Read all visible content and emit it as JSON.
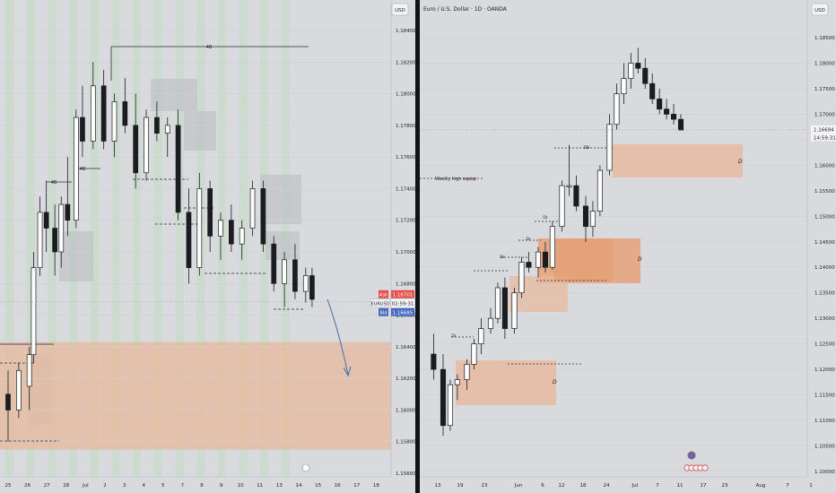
{
  "left_panel": {
    "currency": "USD",
    "y_ticks": [
      "1.18400",
      "1.18200",
      "1.18000",
      "1.17800",
      "1.17600",
      "1.17400",
      "1.17200",
      "1.17000",
      "1.16800",
      "1.16600",
      "1.16400",
      "1.16200",
      "1.16000",
      "1.15800",
      "1.15600"
    ],
    "x_ticks": [
      "25",
      "26",
      "27",
      "28",
      "Jul",
      "2",
      "3",
      "4",
      "5",
      "7",
      "8",
      "9",
      "10",
      "11",
      "13",
      "14",
      "15",
      "16",
      "17",
      "18"
    ],
    "ask": {
      "label": "Ask",
      "value": "1.16701"
    },
    "symbol": {
      "label": "EURUSD",
      "countdown": "02:59:31"
    },
    "bid": {
      "label": "Bid",
      "value": "1.16685"
    },
    "level_marks": [
      "4B",
      "4B",
      "4B"
    ],
    "accent": {
      "ask": "#e84e4e",
      "bid": "#4769c2",
      "zone": "#e8b89b",
      "arrow": "#4a78a8"
    }
  },
  "right_panel": {
    "currency": "USD",
    "title": "Euro / U.S. Dollar · 1D · OANDA",
    "y_ticks": [
      "1.18500",
      "1.18000",
      "1.17500",
      "1.17000",
      "1.16500",
      "1.16000",
      "1.15500",
      "1.15000",
      "1.14500",
      "1.14000",
      "1.13500",
      "1.13000",
      "1.12500",
      "1.12000",
      "1.11500",
      "1.11000",
      "1.10500",
      "1.10000"
    ],
    "x_ticks": [
      "13",
      "19",
      "23",
      "Jun",
      "6",
      "12",
      "18",
      "24",
      "Jul",
      "7",
      "11",
      "17",
      "23",
      "Aug",
      "7",
      "1"
    ],
    "price": {
      "value": "1.16694",
      "countdown": "14:59:31"
    },
    "annotations": {
      "sweep": "Weekly high sweep",
      "zone_label": "D",
      "level_marks": [
        "DB",
        "Dr",
        "Dr",
        "Dr",
        "Dr"
      ]
    }
  },
  "chart_data": [
    {
      "type": "candlestick",
      "title": "",
      "xlabel": "",
      "ylabel": "",
      "x": [
        "25",
        "26",
        "27",
        "28",
        "Jul",
        "2",
        "3",
        "4",
        "5",
        "7",
        "8",
        "9",
        "10",
        "11",
        "13",
        "14",
        "15",
        "16",
        "17",
        "18"
      ],
      "ylim": [
        1.155,
        1.1855
      ],
      "candles": [
        {
          "i": 0,
          "o": 1.161,
          "h": 1.1625,
          "l": 1.158,
          "c": 1.16
        },
        {
          "i": 0.5,
          "o": 1.16,
          "h": 1.163,
          "l": 1.1595,
          "c": 1.1625
        },
        {
          "i": 1,
          "o": 1.1615,
          "h": 1.164,
          "l": 1.16,
          "c": 1.1635
        },
        {
          "i": 1.2,
          "o": 1.1635,
          "h": 1.17,
          "l": 1.163,
          "c": 1.169
        },
        {
          "i": 1.5,
          "o": 1.169,
          "h": 1.1735,
          "l": 1.1685,
          "c": 1.1725
        },
        {
          "i": 1.8,
          "o": 1.1725,
          "h": 1.1745,
          "l": 1.17,
          "c": 1.1715
        },
        {
          "i": 2.2,
          "o": 1.1715,
          "h": 1.173,
          "l": 1.1685,
          "c": 1.17
        },
        {
          "i": 2.5,
          "o": 1.17,
          "h": 1.1735,
          "l": 1.169,
          "c": 1.173
        },
        {
          "i": 2.8,
          "o": 1.173,
          "h": 1.176,
          "l": 1.171,
          "c": 1.172
        },
        {
          "i": 3.2,
          "o": 1.172,
          "h": 1.179,
          "l": 1.1715,
          "c": 1.1785
        },
        {
          "i": 3.5,
          "o": 1.1785,
          "h": 1.1805,
          "l": 1.176,
          "c": 1.177
        },
        {
          "i": 4,
          "o": 1.177,
          "h": 1.182,
          "l": 1.1765,
          "c": 1.1805
        },
        {
          "i": 4.5,
          "o": 1.1805,
          "h": 1.1815,
          "l": 1.1765,
          "c": 1.177
        },
        {
          "i": 5,
          "o": 1.177,
          "h": 1.18,
          "l": 1.176,
          "c": 1.1795
        },
        {
          "i": 5.5,
          "o": 1.1795,
          "h": 1.181,
          "l": 1.1775,
          "c": 1.178
        },
        {
          "i": 6,
          "o": 1.178,
          "h": 1.18,
          "l": 1.174,
          "c": 1.175
        },
        {
          "i": 6.5,
          "o": 1.175,
          "h": 1.179,
          "l": 1.1745,
          "c": 1.1785
        },
        {
          "i": 7,
          "o": 1.1785,
          "h": 1.1795,
          "l": 1.177,
          "c": 1.1775
        },
        {
          "i": 7.5,
          "o": 1.1775,
          "h": 1.1785,
          "l": 1.176,
          "c": 1.178
        },
        {
          "i": 8,
          "o": 1.178,
          "h": 1.179,
          "l": 1.172,
          "c": 1.1725
        },
        {
          "i": 8.5,
          "o": 1.1725,
          "h": 1.174,
          "l": 1.168,
          "c": 1.169
        },
        {
          "i": 9,
          "o": 1.169,
          "h": 1.175,
          "l": 1.1685,
          "c": 1.174
        },
        {
          "i": 9.5,
          "o": 1.174,
          "h": 1.1745,
          "l": 1.17,
          "c": 1.171
        },
        {
          "i": 10,
          "o": 1.171,
          "h": 1.1725,
          "l": 1.1695,
          "c": 1.172
        },
        {
          "i": 10.5,
          "o": 1.172,
          "h": 1.173,
          "l": 1.17,
          "c": 1.1705
        },
        {
          "i": 11,
          "o": 1.1705,
          "h": 1.172,
          "l": 1.1695,
          "c": 1.1715
        },
        {
          "i": 11.5,
          "o": 1.1715,
          "h": 1.1745,
          "l": 1.171,
          "c": 1.174
        },
        {
          "i": 12,
          "o": 1.174,
          "h": 1.1745,
          "l": 1.17,
          "c": 1.1705
        },
        {
          "i": 12.5,
          "o": 1.1705,
          "h": 1.171,
          "l": 1.1675,
          "c": 1.168
        },
        {
          "i": 13,
          "o": 1.168,
          "h": 1.17,
          "l": 1.1665,
          "c": 1.1695
        },
        {
          "i": 13.5,
          "o": 1.1695,
          "h": 1.1705,
          "l": 1.167,
          "c": 1.1675
        },
        {
          "i": 14,
          "o": 1.1675,
          "h": 1.169,
          "l": 1.1668,
          "c": 1.1685
        },
        {
          "i": 14.3,
          "o": 1.1685,
          "h": 1.169,
          "l": 1.1665,
          "c": 1.167
        }
      ],
      "zones": [
        {
          "y1": 1.1575,
          "y2": 1.1643,
          "color": "#e8b89b"
        }
      ]
    },
    {
      "type": "candlestick",
      "title": "Euro / U.S. Dollar · 1D · OANDA",
      "xlabel": "",
      "ylabel": "",
      "x": [
        "13",
        "19",
        "23",
        "Jun",
        "6",
        "12",
        "18",
        "24",
        "Jul",
        "7",
        "11",
        "17",
        "23",
        "Aug",
        "7",
        "1"
      ],
      "ylim": [
        1.098,
        1.188
      ],
      "candles": [
        {
          "i": -0.4,
          "o": 1.123,
          "h": 1.127,
          "l": 1.118,
          "c": 1.12
        },
        {
          "i": 0,
          "o": 1.12,
          "h": 1.123,
          "l": 1.107,
          "c": 1.109
        },
        {
          "i": 0.3,
          "o": 1.109,
          "h": 1.118,
          "l": 1.108,
          "c": 1.117
        },
        {
          "i": 0.6,
          "o": 1.117,
          "h": 1.119,
          "l": 1.114,
          "c": 1.118
        },
        {
          "i": 1,
          "o": 1.118,
          "h": 1.122,
          "l": 1.116,
          "c": 1.121
        },
        {
          "i": 1.3,
          "o": 1.121,
          "h": 1.126,
          "l": 1.12,
          "c": 1.125
        },
        {
          "i": 1.6,
          "o": 1.125,
          "h": 1.13,
          "l": 1.123,
          "c": 1.128
        },
        {
          "i": 2,
          "o": 1.128,
          "h": 1.132,
          "l": 1.127,
          "c": 1.13
        },
        {
          "i": 2.3,
          "o": 1.13,
          "h": 1.137,
          "l": 1.129,
          "c": 1.136
        },
        {
          "i": 2.6,
          "o": 1.136,
          "h": 1.138,
          "l": 1.126,
          "c": 1.128
        },
        {
          "i": 3,
          "o": 1.128,
          "h": 1.136,
          "l": 1.127,
          "c": 1.135
        },
        {
          "i": 3.3,
          "o": 1.135,
          "h": 1.142,
          "l": 1.134,
          "c": 1.141
        },
        {
          "i": 3.6,
          "o": 1.141,
          "h": 1.143,
          "l": 1.139,
          "c": 1.14
        },
        {
          "i": 4,
          "o": 1.14,
          "h": 1.144,
          "l": 1.138,
          "c": 1.143
        },
        {
          "i": 4.3,
          "o": 1.143,
          "h": 1.145,
          "l": 1.139,
          "c": 1.14
        },
        {
          "i": 4.6,
          "o": 1.14,
          "h": 1.149,
          "l": 1.1395,
          "c": 1.148
        },
        {
          "i": 5,
          "o": 1.148,
          "h": 1.157,
          "l": 1.147,
          "c": 1.156
        },
        {
          "i": 5.3,
          "o": 1.156,
          "h": 1.164,
          "l": 1.154,
          "c": 1.156
        },
        {
          "i": 5.6,
          "o": 1.156,
          "h": 1.158,
          "l": 1.151,
          "c": 1.152
        },
        {
          "i": 6,
          "o": 1.152,
          "h": 1.154,
          "l": 1.145,
          "c": 1.148
        },
        {
          "i": 6.3,
          "o": 1.148,
          "h": 1.153,
          "l": 1.146,
          "c": 1.151
        },
        {
          "i": 6.6,
          "o": 1.151,
          "h": 1.16,
          "l": 1.15,
          "c": 1.159
        },
        {
          "i": 7,
          "o": 1.159,
          "h": 1.17,
          "l": 1.158,
          "c": 1.168
        },
        {
          "i": 7.3,
          "o": 1.168,
          "h": 1.176,
          "l": 1.167,
          "c": 1.174
        },
        {
          "i": 7.6,
          "o": 1.174,
          "h": 1.18,
          "l": 1.172,
          "c": 1.177
        },
        {
          "i": 7.9,
          "o": 1.177,
          "h": 1.182,
          "l": 1.175,
          "c": 1.18
        },
        {
          "i": 8.2,
          "o": 1.18,
          "h": 1.183,
          "l": 1.178,
          "c": 1.179
        },
        {
          "i": 8.5,
          "o": 1.179,
          "h": 1.181,
          "l": 1.175,
          "c": 1.176
        },
        {
          "i": 8.8,
          "o": 1.176,
          "h": 1.178,
          "l": 1.172,
          "c": 1.173
        },
        {
          "i": 9.1,
          "o": 1.173,
          "h": 1.175,
          "l": 1.17,
          "c": 1.171
        },
        {
          "i": 9.4,
          "o": 1.171,
          "h": 1.173,
          "l": 1.169,
          "c": 1.17
        },
        {
          "i": 9.7,
          "o": 1.17,
          "h": 1.172,
          "l": 1.168,
          "c": 1.169
        },
        {
          "i": 10,
          "o": 1.169,
          "h": 1.17,
          "l": 1.167,
          "c": 1.1669
        }
      ],
      "zones": [
        {
          "x1": 5.9,
          "x2": 9.5,
          "y1": 1.1575,
          "y2": 1.1635,
          "color": "#e8b89b",
          "label": "D"
        },
        {
          "x1": 3.1,
          "x2": 6.8,
          "y1": 1.137,
          "y2": 1.146,
          "color": "#e8a27a",
          "label": "D"
        },
        {
          "x1": 2.3,
          "x2": 4.4,
          "y1": 1.131,
          "y2": 1.137,
          "color": "#e8b89b"
        },
        {
          "x1": 0.2,
          "x2": 4.0,
          "y1": 1.113,
          "y2": 1.121,
          "color": "#e8b89b",
          "label": "D"
        }
      ]
    }
  ]
}
